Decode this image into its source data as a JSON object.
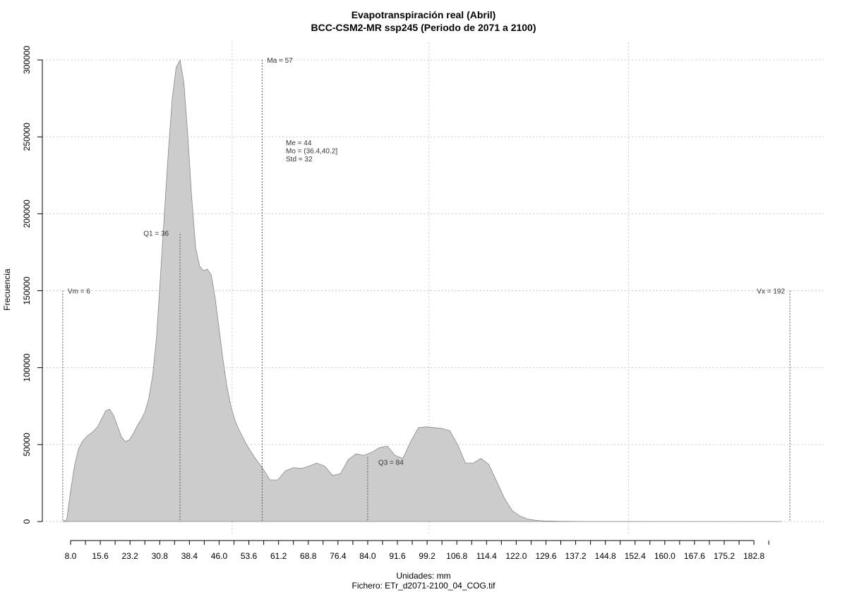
{
  "chart_data": {
    "type": "area",
    "title": "Evapotranspiración real (Abril)",
    "subtitle": "BCC-CSM2-MR ssp245 (Periodo de 2071 a 2100)",
    "xlabel": "Unidades: mm",
    "xlabel2": "Fichero: ETr_d2071-2100_04_COG.tif",
    "ylabel": "Frecuencia",
    "xlim": [
      1.5,
      196
    ],
    "ylim": [
      0,
      300000
    ],
    "x_ticks": [
      8.0,
      15.6,
      23.2,
      30.8,
      38.4,
      46.0,
      53.6,
      61.2,
      68.8,
      76.4,
      84.0,
      91.6,
      99.2,
      106.8,
      114.4,
      122.0,
      129.6,
      137.2,
      144.8,
      152.4,
      160.0,
      167.6,
      175.2,
      182.8
    ],
    "x_tick_labels": [
      "8.0",
      "15.6",
      "23.2",
      "30.8",
      "38.4",
      "46.0",
      "53.6",
      "61.2",
      "68.8",
      "76.4",
      "84.0",
      "91.6",
      "99.2",
      "106.8",
      "114.4",
      "122.0",
      "129.6",
      "137.2",
      "144.8",
      "152.4",
      "160.0",
      "167.6",
      "175.2",
      "182.8"
    ],
    "y_ticks": [
      0,
      50000,
      100000,
      150000,
      200000,
      250000,
      300000
    ],
    "y_tick_labels": [
      "0",
      "50000",
      "100000",
      "150000",
      "200000",
      "250000",
      "300000"
    ],
    "grid": true,
    "fill_color": "#cccccc",
    "line_color": "#888888",
    "series": [
      {
        "x": [
          6,
          7,
          8,
          9,
          10,
          11,
          12,
          13,
          14,
          15,
          16,
          17,
          18,
          19,
          20,
          21,
          22,
          23,
          24,
          25,
          26,
          27,
          28,
          29,
          30,
          31,
          32,
          33,
          34,
          35,
          36,
          37,
          38,
          39,
          40,
          41,
          42,
          43,
          44,
          45,
          46,
          47,
          48,
          49,
          50,
          51,
          52,
          53,
          55,
          57,
          59,
          61,
          63,
          65,
          67,
          69,
          71,
          73,
          75,
          77,
          79,
          81,
          83,
          85,
          87,
          89,
          91,
          93,
          95,
          97,
          99,
          101,
          103,
          105,
          107,
          109,
          111,
          113,
          115,
          117,
          119,
          121,
          123,
          125,
          127,
          129,
          131,
          133,
          135,
          137,
          140,
          145,
          150,
          160,
          170,
          180,
          190
        ],
        "y": [
          0,
          1000,
          20000,
          36000,
          47000,
          52000,
          55000,
          57000,
          59000,
          62000,
          67000,
          72000,
          73000,
          69000,
          62000,
          55000,
          52000,
          53000,
          57000,
          62000,
          66000,
          71000,
          80000,
          95000,
          120000,
          160000,
          200000,
          240000,
          275000,
          295000,
          300000,
          285000,
          250000,
          210000,
          178000,
          166000,
          163000,
          164000,
          160000,
          145000,
          125000,
          105000,
          88000,
          75000,
          66000,
          60000,
          55000,
          50000,
          42000,
          35000,
          27000,
          27000,
          33000,
          35000,
          34500,
          36000,
          38000,
          36000,
          30000,
          31000,
          40000,
          44000,
          43000,
          45000,
          48000,
          49000,
          43000,
          41000,
          52000,
          61000,
          61500,
          61000,
          60500,
          59000,
          50000,
          38000,
          38000,
          41000,
          37000,
          26000,
          15000,
          7000,
          3500,
          1500,
          800,
          400,
          300,
          200,
          150,
          100,
          60,
          40,
          25,
          15,
          8,
          4,
          0
        ]
      }
    ],
    "annotations": {
      "Vm": {
        "x": 6,
        "label": "Vm = 6"
      },
      "Vx": {
        "x": 192,
        "label": "Vx = 192"
      },
      "Q1": {
        "x": 36,
        "label": "Q1 = 36"
      },
      "Ma": {
        "x": 57,
        "label": "Ma = 57"
      },
      "Q3": {
        "x": 84,
        "label": "Q3 = 84"
      },
      "stats": [
        "Me = 44",
        "Mo = (36.4,40.2]",
        "Std = 32"
      ]
    }
  }
}
